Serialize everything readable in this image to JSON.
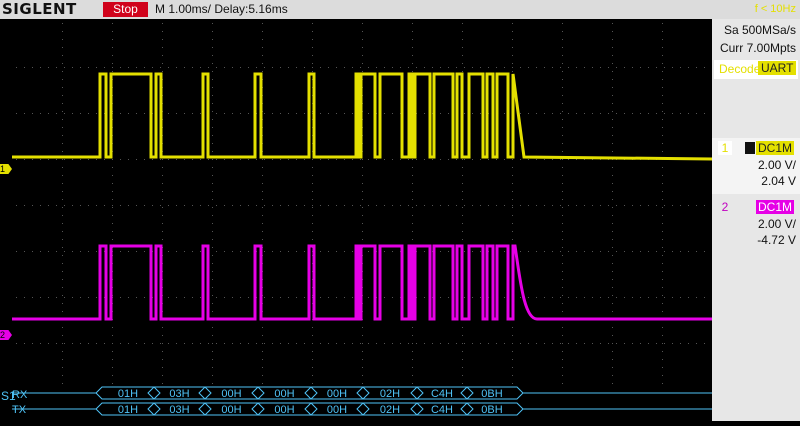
{
  "brand": "SIGLENT",
  "status": "Stop",
  "timebase": "M 1.00ms/ Delay:5.16ms",
  "trigger_readout": "f < 10Hz",
  "side": {
    "sample_rate": "Sa 500MSa/s",
    "memory": "Curr 7.00Mpts",
    "decode_label": "Decode",
    "decode_type": "UART"
  },
  "channels": [
    {
      "num": "1",
      "coupling": "DC1M",
      "vdiv": "2.00 V/",
      "offset": "2.04 V",
      "color": "#e4e000"
    },
    {
      "num": "2",
      "coupling": "DC1M",
      "vdiv": "2.00 V/",
      "offset": "-4.72 V",
      "color": "#e600e6"
    }
  ],
  "bus": {
    "id": "S1",
    "rx_label": "RX",
    "tx_label": "TX",
    "rx_bytes": [
      "01H",
      "03H",
      "00H",
      "00H",
      "00H",
      "02H",
      "C4H",
      "0BH"
    ],
    "tx_bytes": [
      "01H",
      "03H",
      "00H",
      "00H",
      "00H",
      "02H",
      "C4H",
      "0BH"
    ],
    "color": "#4fc3f7"
  }
}
